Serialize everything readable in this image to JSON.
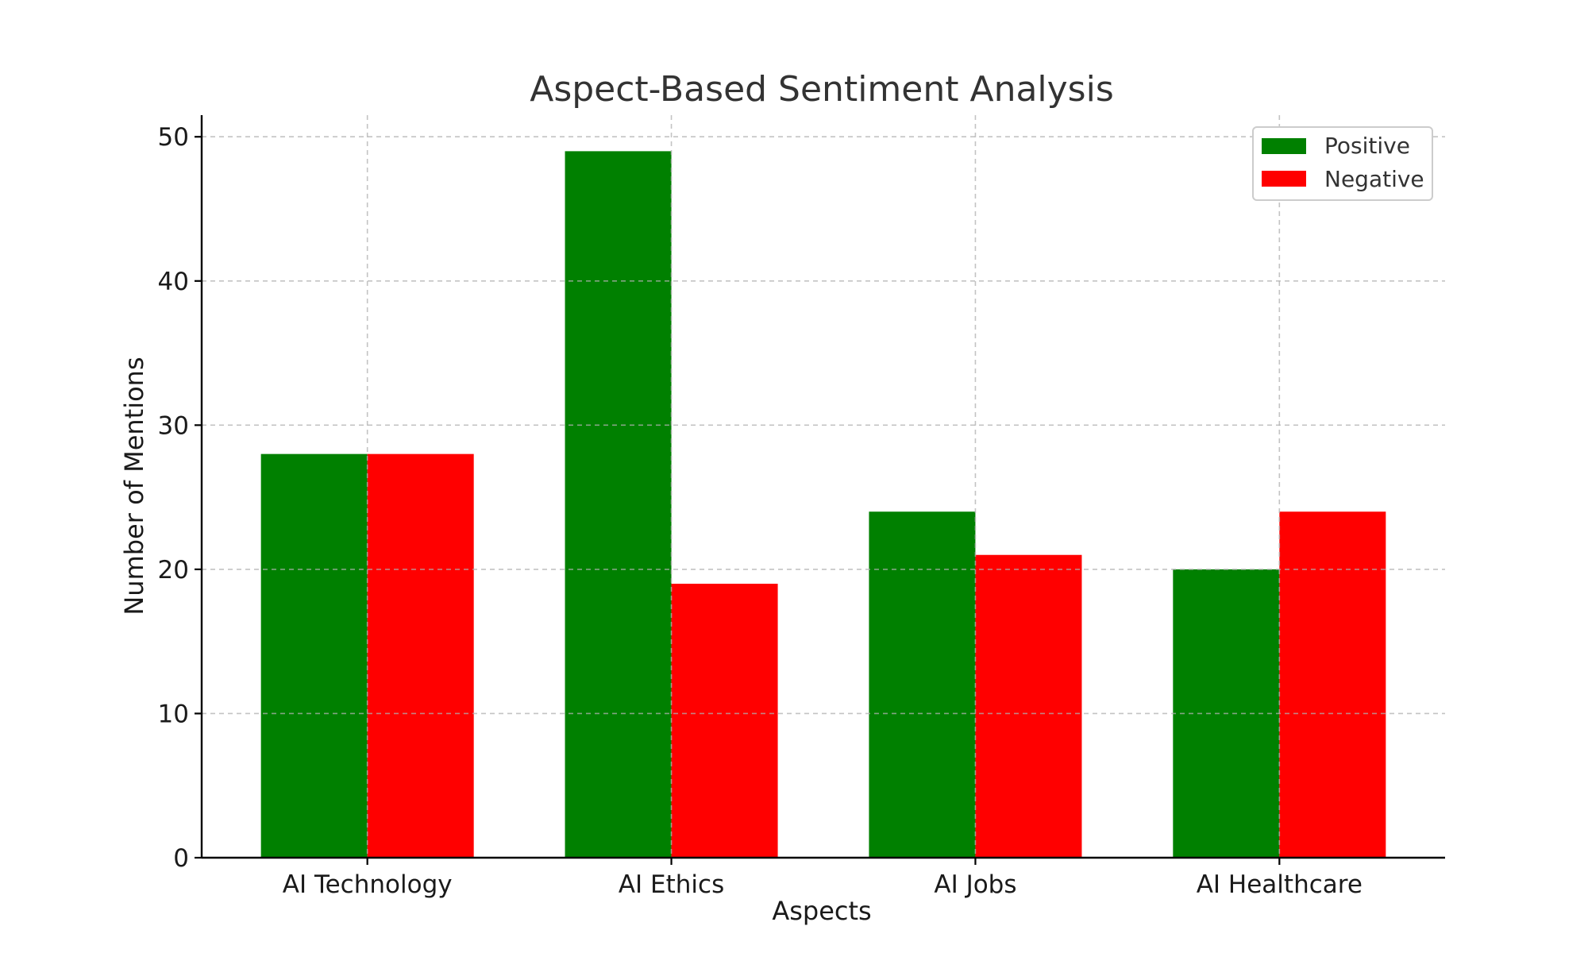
{
  "chart_data": {
    "type": "bar",
    "title": "Aspect-Based Sentiment Analysis",
    "xlabel": "Aspects",
    "ylabel": "Number of Mentions",
    "categories": [
      "AI Technology",
      "AI Ethics",
      "AI Jobs",
      "AI Healthcare"
    ],
    "series": [
      {
        "name": "Positive",
        "color": "#008000",
        "values": [
          28,
          49,
          24,
          20
        ]
      },
      {
        "name": "Negative",
        "color": "#ff0000",
        "values": [
          28,
          19,
          21,
          24
        ]
      }
    ],
    "ylim": [
      0,
      51.5
    ],
    "yticks": [
      0,
      10,
      20,
      30,
      40,
      50
    ],
    "grid": true,
    "legend_position": "top-right"
  }
}
